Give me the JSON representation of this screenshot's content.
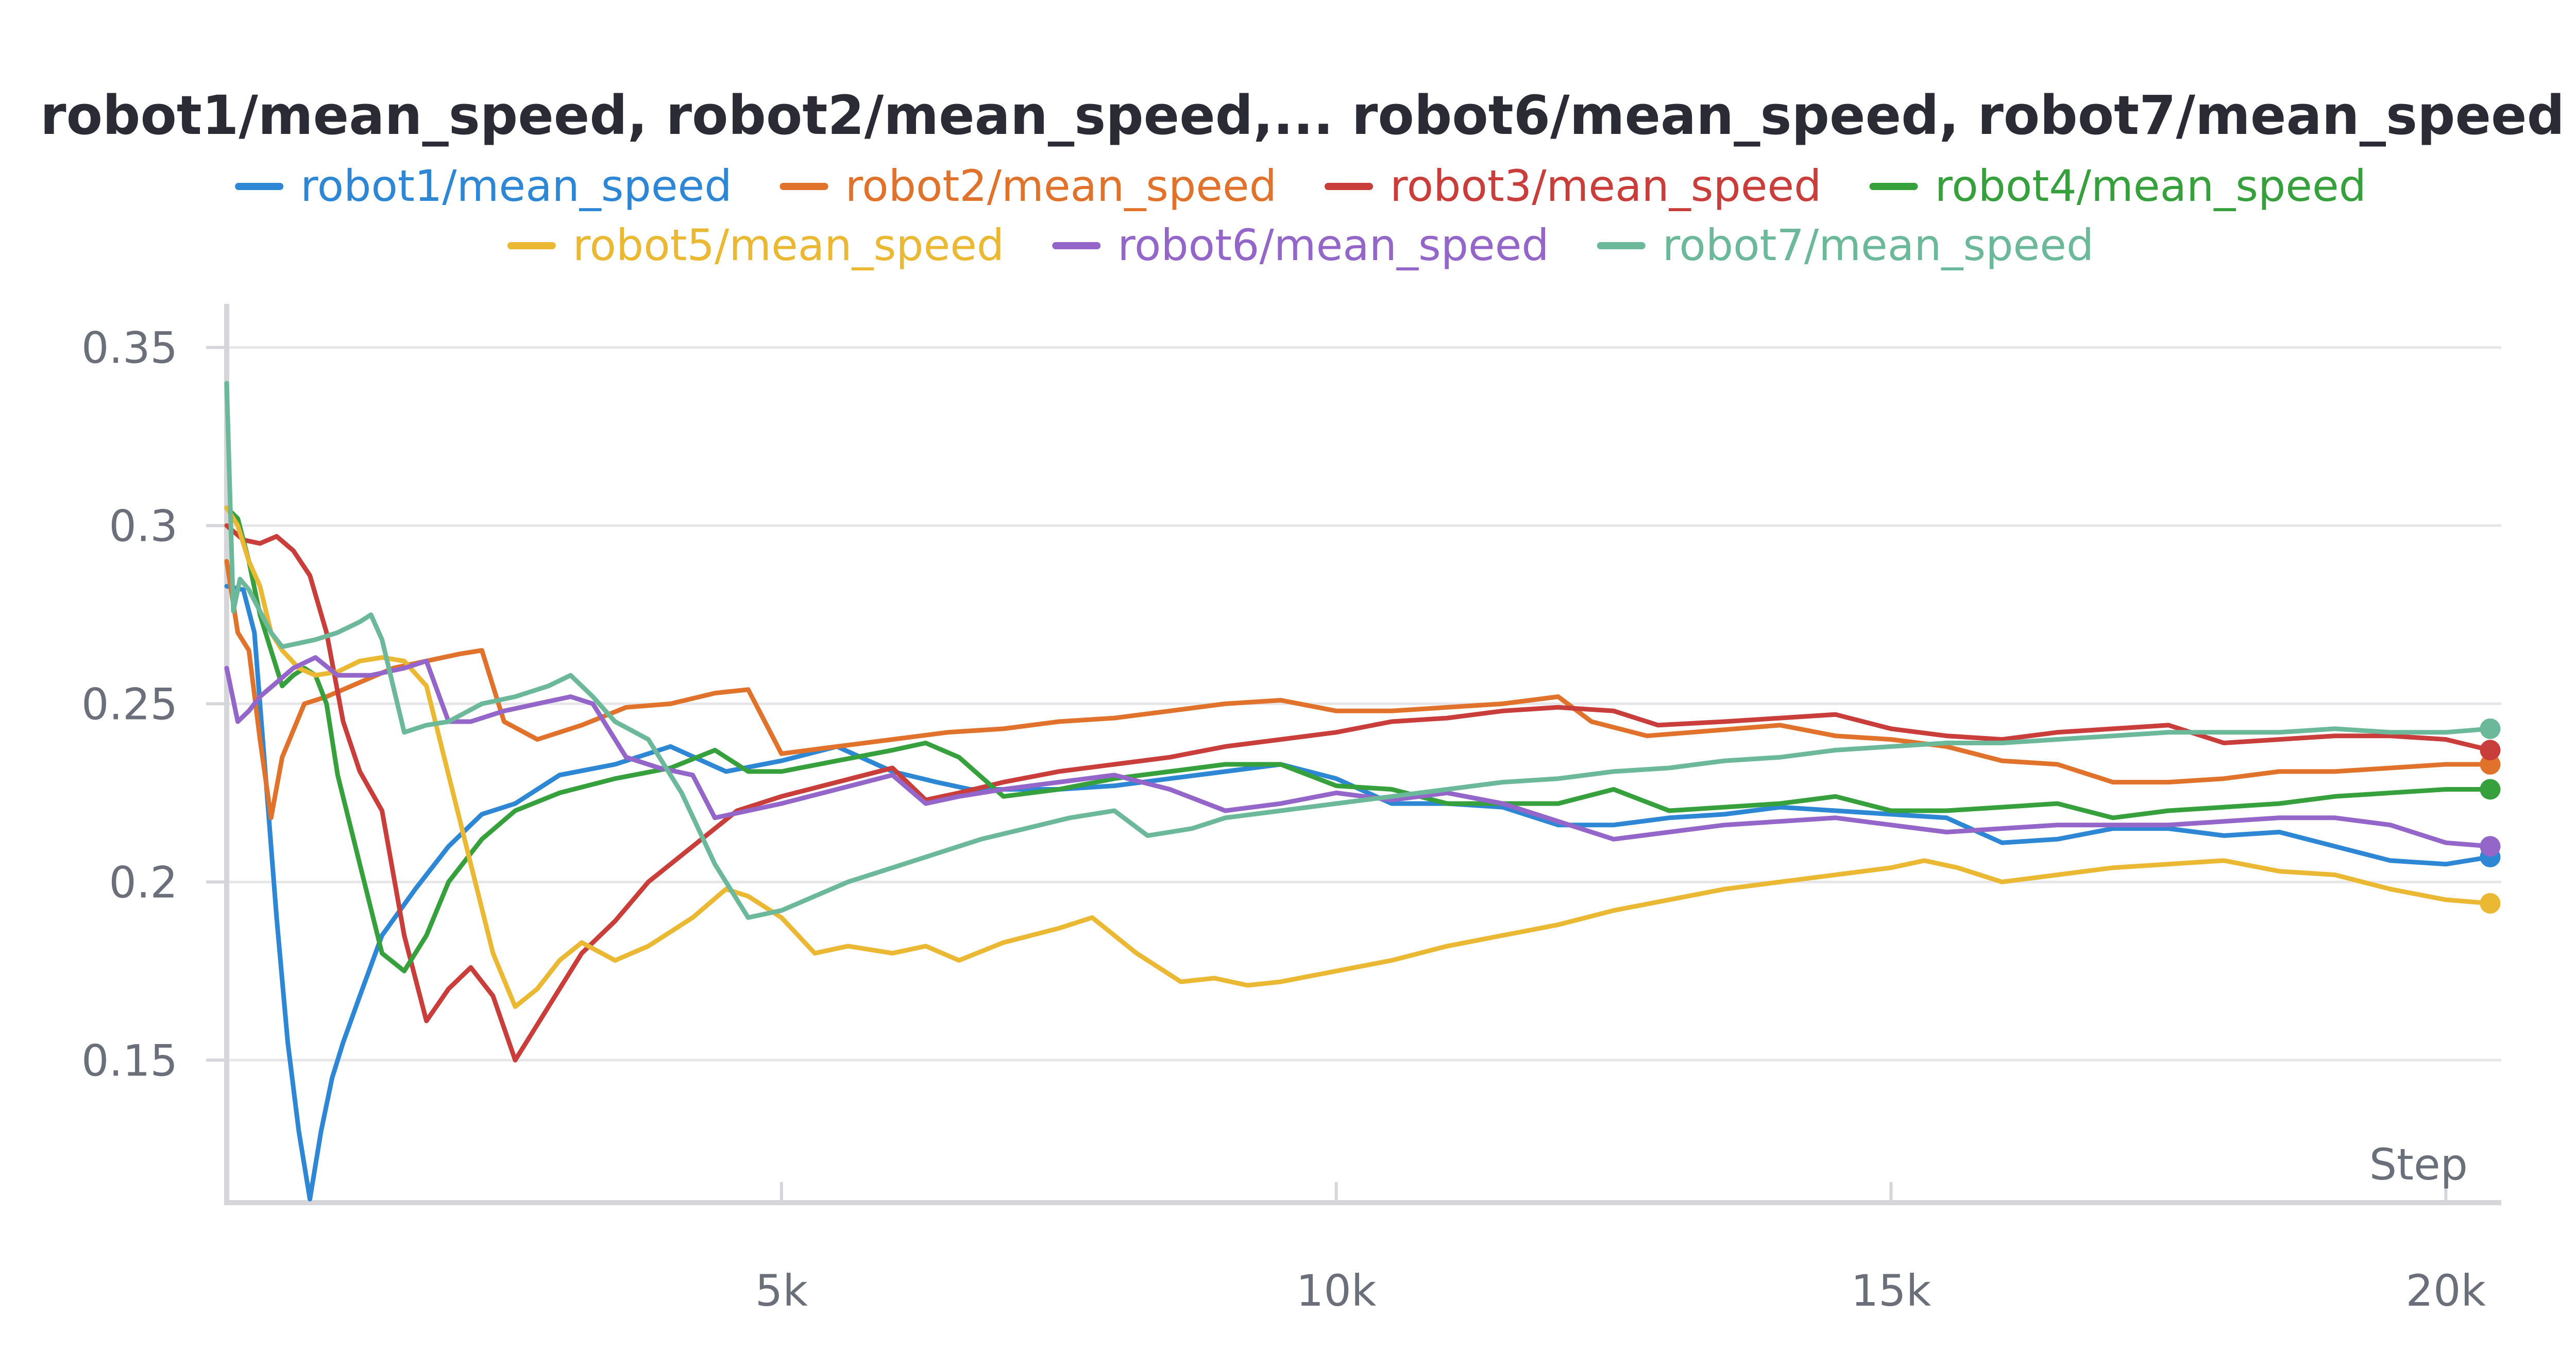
{
  "chart_data": {
    "type": "line",
    "title": "robot1/mean_speed, robot2/mean_speed,... robot6/mean_speed, robot7/mean_speed",
    "xlabel": "Step",
    "ylabel": "",
    "xlim": [
      0,
      20500
    ],
    "ylim": [
      0.11,
      0.355
    ],
    "x_ticks": [
      5000,
      10000,
      15000,
      20000
    ],
    "x_tick_labels": [
      "5k",
      "10k",
      "15k",
      "20k"
    ],
    "y_ticks": [
      0.15,
      0.2,
      0.25,
      0.3,
      0.35
    ],
    "y_tick_labels": [
      "0.15",
      "0.2",
      "0.25",
      "0.3",
      "0.35"
    ],
    "grid": true,
    "legend_position": "top",
    "series": [
      {
        "name": "robot1/mean_speed",
        "color": "#2d87d4",
        "x": [
          0,
          150,
          250,
          350,
          450,
          550,
          650,
          750,
          850,
          950,
          1050,
          1200,
          1400,
          1700,
          2000,
          2300,
          2600,
          3000,
          3500,
          4000,
          4500,
          5000,
          5500,
          6000,
          6400,
          6700,
          7000,
          7500,
          8000,
          8500,
          9000,
          9500,
          10000,
          10500,
          11000,
          11500,
          12000,
          12500,
          13000,
          13500,
          14000,
          14500,
          15000,
          15500,
          16000,
          16500,
          17000,
          17500,
          18000,
          18500,
          19000,
          19500,
          20000,
          20400
        ],
        "y": [
          0.283,
          0.282,
          0.27,
          0.23,
          0.19,
          0.155,
          0.13,
          0.111,
          0.13,
          0.145,
          0.155,
          0.168,
          0.185,
          0.198,
          0.21,
          0.219,
          0.222,
          0.23,
          0.233,
          0.238,
          0.231,
          0.234,
          0.238,
          0.231,
          0.228,
          0.226,
          0.226,
          0.226,
          0.227,
          0.229,
          0.231,
          0.233,
          0.229,
          0.222,
          0.222,
          0.221,
          0.216,
          0.216,
          0.218,
          0.219,
          0.221,
          0.22,
          0.219,
          0.218,
          0.211,
          0.212,
          0.215,
          0.215,
          0.213,
          0.214,
          0.21,
          0.206,
          0.205,
          0.207
        ]
      },
      {
        "name": "robot2/mean_speed",
        "color": "#e0722c",
        "x": [
          0,
          100,
          200,
          300,
          400,
          500,
          700,
          900,
          1200,
          1500,
          1800,
          2100,
          2300,
          2500,
          2800,
          3200,
          3600,
          4000,
          4400,
          4700,
          5000,
          5500,
          6000,
          6500,
          7000,
          7500,
          8000,
          8500,
          9000,
          9500,
          10000,
          10500,
          11000,
          11500,
          12000,
          12300,
          12800,
          13200,
          13600,
          14000,
          14500,
          15000,
          15500,
          16000,
          16500,
          17000,
          17500,
          18000,
          18500,
          19000,
          19500,
          20000,
          20400
        ],
        "y": [
          0.29,
          0.27,
          0.265,
          0.24,
          0.218,
          0.235,
          0.25,
          0.252,
          0.256,
          0.26,
          0.262,
          0.264,
          0.265,
          0.245,
          0.24,
          0.244,
          0.249,
          0.25,
          0.253,
          0.254,
          0.236,
          0.238,
          0.24,
          0.242,
          0.243,
          0.245,
          0.246,
          0.248,
          0.25,
          0.251,
          0.248,
          0.248,
          0.249,
          0.25,
          0.252,
          0.245,
          0.241,
          0.242,
          0.243,
          0.244,
          0.241,
          0.24,
          0.238,
          0.234,
          0.233,
          0.228,
          0.228,
          0.229,
          0.231,
          0.231,
          0.232,
          0.233,
          0.233
        ]
      },
      {
        "name": "robot3/mean_speed",
        "color": "#c93d3a",
        "x": [
          0,
          150,
          300,
          450,
          600,
          750,
          900,
          1050,
          1200,
          1400,
          1600,
          1800,
          2000,
          2200,
          2400,
          2600,
          2900,
          3200,
          3500,
          3800,
          4200,
          4600,
          5000,
          5500,
          6000,
          6300,
          6600,
          7000,
          7500,
          8000,
          8500,
          9000,
          9500,
          10000,
          10500,
          11000,
          11500,
          12000,
          12500,
          12900,
          13500,
          14000,
          14500,
          15000,
          15500,
          16000,
          16500,
          17000,
          17500,
          18000,
          18500,
          19000,
          19500,
          20000,
          20400
        ],
        "y": [
          0.3,
          0.296,
          0.295,
          0.297,
          0.293,
          0.286,
          0.27,
          0.245,
          0.231,
          0.22,
          0.185,
          0.161,
          0.17,
          0.176,
          0.168,
          0.15,
          0.165,
          0.18,
          0.189,
          0.2,
          0.21,
          0.22,
          0.224,
          0.228,
          0.232,
          0.223,
          0.225,
          0.228,
          0.231,
          0.233,
          0.235,
          0.238,
          0.24,
          0.242,
          0.245,
          0.246,
          0.248,
          0.249,
          0.248,
          0.244,
          0.245,
          0.246,
          0.247,
          0.243,
          0.241,
          0.24,
          0.242,
          0.243,
          0.244,
          0.239,
          0.24,
          0.241,
          0.241,
          0.24,
          0.237
        ]
      },
      {
        "name": "robot4/mean_speed",
        "color": "#36a03d",
        "x": [
          0,
          100,
          200,
          300,
          400,
          500,
          600,
          700,
          800,
          900,
          1000,
          1200,
          1400,
          1600,
          1800,
          2000,
          2300,
          2600,
          3000,
          3500,
          4000,
          4400,
          4700,
          5000,
          5500,
          6000,
          6300,
          6600,
          7000,
          7500,
          8000,
          8500,
          9000,
          9500,
          10000,
          10500,
          11000,
          11500,
          12000,
          12500,
          13000,
          13500,
          14000,
          14500,
          15000,
          15500,
          16000,
          16500,
          17000,
          17500,
          18000,
          18500,
          19000,
          19500,
          20000,
          20400
        ],
        "y": [
          0.305,
          0.302,
          0.29,
          0.275,
          0.265,
          0.255,
          0.258,
          0.26,
          0.258,
          0.25,
          0.23,
          0.205,
          0.18,
          0.175,
          0.185,
          0.2,
          0.212,
          0.22,
          0.225,
          0.229,
          0.232,
          0.237,
          0.231,
          0.231,
          0.234,
          0.237,
          0.239,
          0.235,
          0.224,
          0.226,
          0.229,
          0.231,
          0.233,
          0.233,
          0.227,
          0.226,
          0.222,
          0.222,
          0.222,
          0.226,
          0.22,
          0.221,
          0.222,
          0.224,
          0.22,
          0.22,
          0.221,
          0.222,
          0.218,
          0.22,
          0.221,
          0.222,
          0.224,
          0.225,
          0.226,
          0.226
        ]
      },
      {
        "name": "robot5/mean_speed",
        "color": "#eab832",
        "x": [
          0,
          100,
          200,
          300,
          400,
          500,
          650,
          800,
          1000,
          1200,
          1400,
          1600,
          1800,
          2000,
          2200,
          2400,
          2600,
          2800,
          3000,
          3200,
          3500,
          3800,
          4200,
          4500,
          4700,
          5000,
          5300,
          5600,
          6000,
          6300,
          6600,
          7000,
          7500,
          7800,
          8200,
          8600,
          8900,
          9200,
          9500,
          10000,
          10500,
          11000,
          11500,
          12000,
          12500,
          13000,
          13500,
          14000,
          14500,
          15000,
          15300,
          15600,
          16000,
          16500,
          17000,
          17500,
          18000,
          18500,
          19000,
          19500,
          20000,
          20400
        ],
        "y": [
          0.305,
          0.3,
          0.29,
          0.283,
          0.27,
          0.265,
          0.26,
          0.258,
          0.259,
          0.262,
          0.263,
          0.262,
          0.255,
          0.23,
          0.205,
          0.18,
          0.165,
          0.17,
          0.178,
          0.183,
          0.178,
          0.182,
          0.19,
          0.198,
          0.196,
          0.19,
          0.18,
          0.182,
          0.18,
          0.182,
          0.178,
          0.183,
          0.187,
          0.19,
          0.18,
          0.172,
          0.173,
          0.171,
          0.172,
          0.175,
          0.178,
          0.182,
          0.185,
          0.188,
          0.192,
          0.195,
          0.198,
          0.2,
          0.202,
          0.204,
          0.206,
          0.204,
          0.2,
          0.202,
          0.204,
          0.205,
          0.206,
          0.203,
          0.202,
          0.198,
          0.195,
          0.194
        ]
      },
      {
        "name": "robot6/mean_speed",
        "color": "#9466c9",
        "x": [
          0,
          100,
          200,
          300,
          450,
          600,
          800,
          1000,
          1300,
          1600,
          1800,
          2000,
          2200,
          2500,
          2800,
          3100,
          3300,
          3600,
          3900,
          4200,
          4400,
          4700,
          5000,
          5500,
          6000,
          6300,
          6600,
          7000,
          7500,
          8000,
          8500,
          9000,
          9500,
          10000,
          10500,
          11000,
          11500,
          12000,
          12500,
          13000,
          13500,
          14000,
          14500,
          15000,
          15500,
          16000,
          16500,
          17000,
          17500,
          18000,
          18500,
          19000,
          19500,
          20000,
          20400
        ],
        "y": [
          0.26,
          0.245,
          0.248,
          0.252,
          0.256,
          0.26,
          0.263,
          0.258,
          0.258,
          0.26,
          0.262,
          0.245,
          0.245,
          0.248,
          0.25,
          0.252,
          0.25,
          0.235,
          0.232,
          0.23,
          0.218,
          0.22,
          0.222,
          0.226,
          0.23,
          0.222,
          0.224,
          0.226,
          0.228,
          0.23,
          0.226,
          0.22,
          0.222,
          0.225,
          0.223,
          0.225,
          0.222,
          0.217,
          0.212,
          0.214,
          0.216,
          0.217,
          0.218,
          0.216,
          0.214,
          0.215,
          0.216,
          0.216,
          0.216,
          0.217,
          0.218,
          0.218,
          0.216,
          0.211,
          0.21
        ]
      },
      {
        "name": "robot7/mean_speed",
        "color": "#6bb89b",
        "x": [
          0,
          60,
          120,
          200,
          300,
          400,
          500,
          650,
          800,
          1000,
          1200,
          1300,
          1400,
          1600,
          1800,
          2000,
          2300,
          2600,
          2900,
          3100,
          3300,
          3500,
          3800,
          4100,
          4400,
          4700,
          5000,
          5300,
          5600,
          6000,
          6400,
          6800,
          7200,
          7600,
          8000,
          8300,
          8700,
          9000,
          9500,
          10000,
          10500,
          11000,
          11500,
          12000,
          12500,
          13000,
          13500,
          14000,
          14500,
          15000,
          15500,
          16000,
          16500,
          17000,
          17500,
          18000,
          18500,
          19000,
          19500,
          20000,
          20400
        ],
        "y": [
          0.34,
          0.276,
          0.285,
          0.282,
          0.276,
          0.27,
          0.266,
          0.267,
          0.268,
          0.27,
          0.273,
          0.275,
          0.268,
          0.242,
          0.244,
          0.245,
          0.25,
          0.252,
          0.255,
          0.258,
          0.252,
          0.245,
          0.24,
          0.225,
          0.205,
          0.19,
          0.192,
          0.196,
          0.2,
          0.204,
          0.208,
          0.212,
          0.215,
          0.218,
          0.22,
          0.213,
          0.215,
          0.218,
          0.22,
          0.222,
          0.224,
          0.226,
          0.228,
          0.229,
          0.231,
          0.232,
          0.234,
          0.235,
          0.237,
          0.238,
          0.239,
          0.239,
          0.24,
          0.241,
          0.242,
          0.242,
          0.242,
          0.243,
          0.242,
          0.242,
          0.243
        ]
      }
    ]
  }
}
